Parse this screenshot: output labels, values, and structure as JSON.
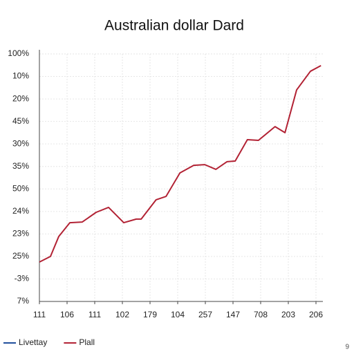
{
  "chart_data": {
    "type": "line",
    "title": "Australian dollar Dard",
    "xlim": [
      0,
      10.25
    ],
    "xticks": [
      {
        "value": 0,
        "label": "111"
      },
      {
        "value": 1,
        "label": "106"
      },
      {
        "value": 2,
        "label": "111"
      },
      {
        "value": 3,
        "label": "102"
      },
      {
        "value": 4,
        "label": "179"
      },
      {
        "value": 5,
        "label": "104"
      },
      {
        "value": 6,
        "label": "257"
      },
      {
        "value": 7,
        "label": "147"
      },
      {
        "value": 8,
        "label": "708"
      },
      {
        "value": 9,
        "label": "203"
      },
      {
        "value": 10,
        "label": "206"
      }
    ],
    "ylim": [
      0,
      11
    ],
    "yticks": [
      {
        "value": 0,
        "label": "7%"
      },
      {
        "value": 1,
        "label": "-3%"
      },
      {
        "value": 2,
        "label": "25%"
      },
      {
        "value": 3,
        "label": "23%"
      },
      {
        "value": 4,
        "label": "24%"
      },
      {
        "value": 5,
        "label": "50%"
      },
      {
        "value": 6,
        "label": "35%"
      },
      {
        "value": 7,
        "label": "30%"
      },
      {
        "value": 8,
        "label": "45%"
      },
      {
        "value": 9,
        "label": "20%"
      },
      {
        "value": 10,
        "label": "10%"
      },
      {
        "value": 11,
        "label": "100%"
      }
    ],
    "grid": true,
    "x": [
      0,
      0.4,
      0.7,
      1.1,
      1.55,
      2.05,
      2.5,
      3.05,
      3.5,
      3.68,
      4.22,
      4.58,
      5.08,
      5.58,
      5.98,
      6.38,
      6.78,
      7.08,
      7.52,
      7.92,
      8.52,
      8.88,
      9.3,
      9.8,
      10.18
    ],
    "series": [
      {
        "color": "#b22234",
        "values": [
          1.75,
          2.0,
          2.89,
          3.5,
          3.53,
          3.96,
          4.18,
          3.5,
          3.66,
          3.66,
          4.52,
          4.67,
          5.71,
          6.05,
          6.08,
          5.87,
          6.21,
          6.24,
          7.19,
          7.16,
          7.77,
          7.5,
          9.4,
          10.23,
          10.48
        ]
      }
    ],
    "legend": [
      {
        "name": "Livettay",
        "color": "#1f4e9c"
      },
      {
        "name": "Plall",
        "color": "#b22234"
      }
    ],
    "corner_text": "9"
  }
}
